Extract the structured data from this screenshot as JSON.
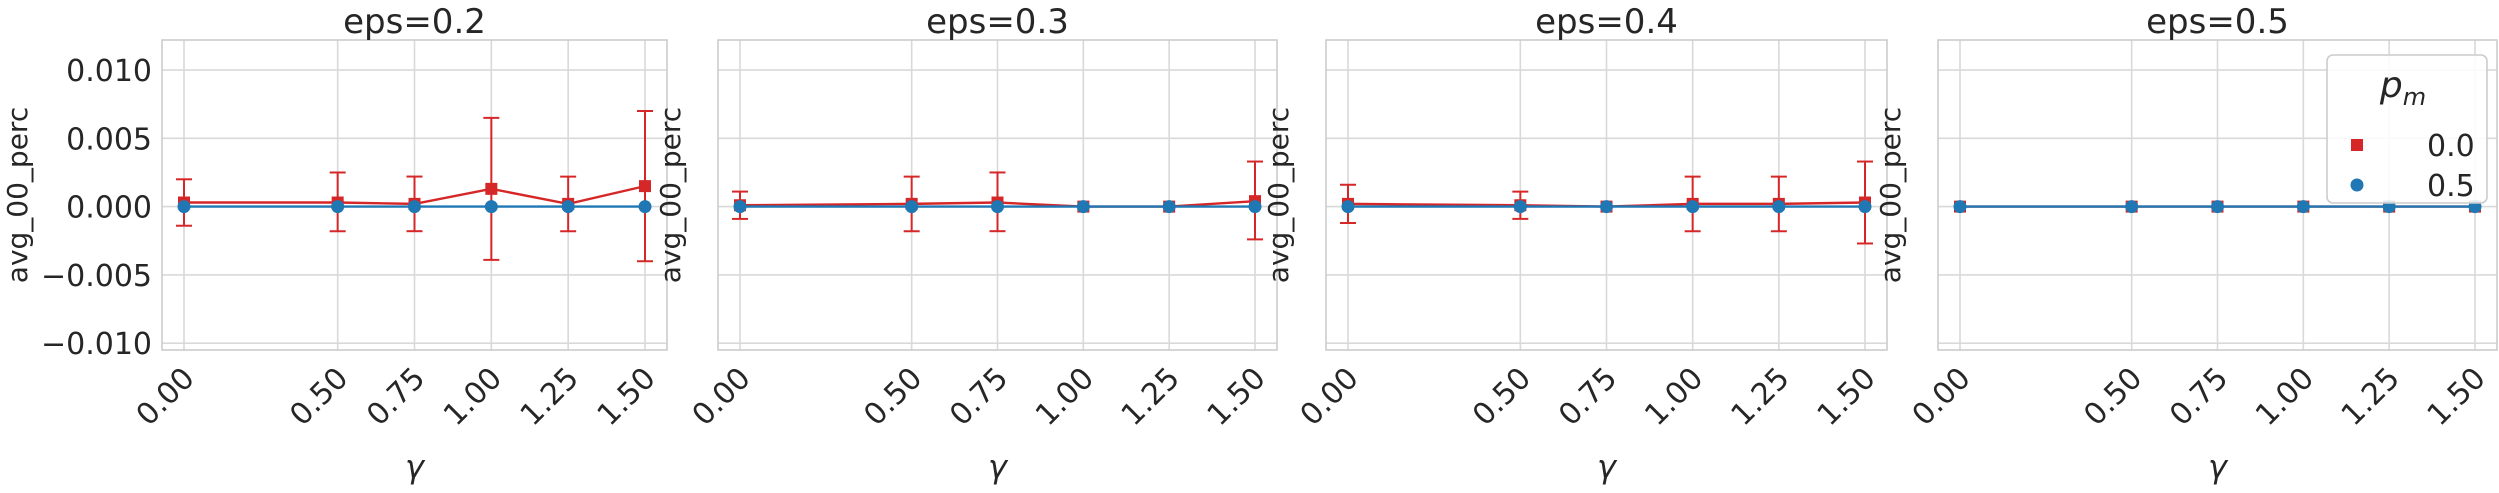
{
  "chart_data": {
    "type": "line",
    "layout": "1x4 subplots, shared y axis",
    "x": [
      0.0,
      0.5,
      0.75,
      1.0,
      1.25,
      1.5
    ],
    "x_tick_labels": [
      "0.00",
      "0.50",
      "0.75",
      "1.00",
      "1.25",
      "1.50"
    ],
    "x_tick_rotation": 45,
    "xlabel": "γ",
    "ylabel": "avg_00_perc",
    "ylim": [
      -0.0105,
      0.0122
    ],
    "y_ticks": [
      -0.01,
      -0.005,
      0.0,
      0.005,
      0.01
    ],
    "y_tick_labels": [
      "−0.010",
      "−0.005",
      "0.000",
      "0.005",
      "0.010"
    ],
    "grid": true,
    "legend": {
      "title": "p",
      "title_sub": "m",
      "placement": "top-right (last panel)",
      "entries": [
        {
          "label": "0.0",
          "color": "#d62728",
          "marker": "square"
        },
        {
          "label": "0.5",
          "color": "#1f77b4",
          "marker": "circle"
        }
      ]
    },
    "panels": [
      {
        "title": "eps=0.2",
        "series": [
          {
            "name": "0.0",
            "color": "#d62728",
            "marker": "square",
            "values": [
              0.0003,
              0.0003,
              0.0002,
              0.0013,
              0.0002,
              0.0015
            ],
            "err_low": [
              -0.0014,
              -0.0018,
              -0.0018,
              -0.0039,
              -0.0018,
              -0.004
            ],
            "err_high": [
              0.002,
              0.0025,
              0.0022,
              0.0065,
              0.0022,
              0.007
            ]
          },
          {
            "name": "0.5",
            "color": "#1f77b4",
            "marker": "circle",
            "values": [
              0.0,
              0.0,
              0.0,
              0.0,
              0.0,
              0.0
            ]
          }
        ]
      },
      {
        "title": "eps=0.3",
        "series": [
          {
            "name": "0.0",
            "color": "#d62728",
            "marker": "square",
            "values": [
              0.0001,
              0.0002,
              0.0003,
              0.0,
              0.0,
              0.0004
            ],
            "err_low": [
              -0.0009,
              -0.0018,
              -0.0018,
              0.0,
              0.0,
              -0.0024
            ],
            "err_high": [
              0.0011,
              0.0022,
              0.0025,
              0.0,
              0.0,
              0.0033
            ]
          },
          {
            "name": "0.5",
            "color": "#1f77b4",
            "marker": "circle",
            "values": [
              0.0,
              0.0,
              0.0,
              0.0,
              0.0,
              0.0
            ]
          }
        ]
      },
      {
        "title": "eps=0.4",
        "series": [
          {
            "name": "0.0",
            "color": "#d62728",
            "marker": "square",
            "values": [
              0.0002,
              0.0001,
              0.0,
              0.0002,
              0.0002,
              0.0003
            ],
            "err_low": [
              -0.0012,
              -0.0009,
              0.0,
              -0.0018,
              -0.0018,
              -0.0027
            ],
            "err_high": [
              0.0016,
              0.0011,
              0.0,
              0.0022,
              0.0022,
              0.0033
            ]
          },
          {
            "name": "0.5",
            "color": "#1f77b4",
            "marker": "circle",
            "values": [
              0.0,
              0.0,
              0.0,
              0.0,
              0.0,
              0.0
            ]
          }
        ]
      },
      {
        "title": "eps=0.5",
        "series": [
          {
            "name": "0.0",
            "color": "#d62728",
            "marker": "square",
            "values": [
              0.0,
              0.0,
              0.0,
              0.0,
              0.0,
              0.0
            ]
          },
          {
            "name": "0.5",
            "color": "#1f77b4",
            "marker": "circle",
            "values": [
              0.0,
              0.0,
              0.0,
              0.0,
              0.0,
              0.0
            ]
          }
        ]
      }
    ]
  }
}
